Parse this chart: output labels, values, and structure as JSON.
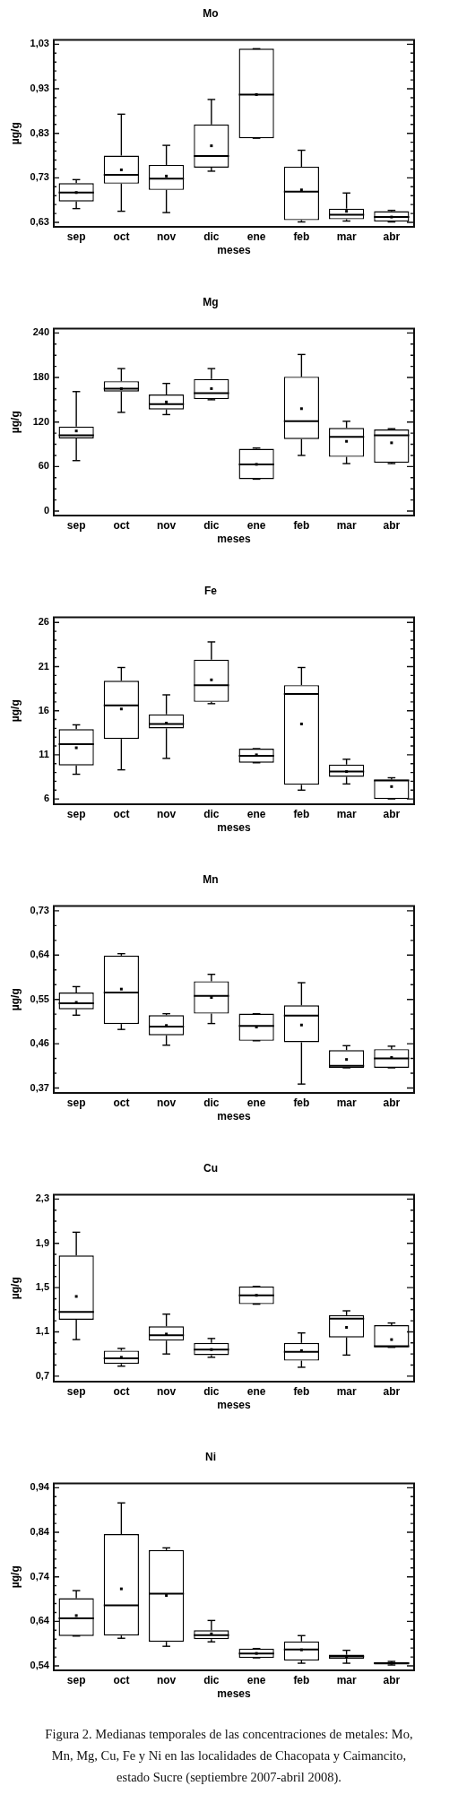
{
  "chart_data": [
    {
      "type": "box",
      "title": "Mo",
      "xlabel": "meses",
      "ylabel": "µg/g",
      "color": "#000000",
      "categories": [
        "sep",
        "oct",
        "nov",
        "dic",
        "ene",
        "feb",
        "mar",
        "abr"
      ],
      "boxes": [
        {
          "low": 0.661,
          "q1": 0.677,
          "median": 0.697,
          "q3": 0.718,
          "high": 0.726,
          "mean": 0.697
        },
        {
          "low": 0.655,
          "q1": 0.717,
          "median": 0.737,
          "q3": 0.78,
          "high": 0.873,
          "mean": 0.748
        },
        {
          "low": 0.652,
          "q1": 0.703,
          "median": 0.728,
          "q3": 0.759,
          "high": 0.803,
          "mean": 0.734
        },
        {
          "low": 0.745,
          "q1": 0.753,
          "median": 0.779,
          "q3": 0.85,
          "high": 0.906,
          "mean": 0.802
        },
        {
          "low": 0.819,
          "q1": 0.819,
          "median": 0.917,
          "q3": 1.02,
          "high": 1.02,
          "mean": 0.917
        },
        {
          "low": 0.631,
          "q1": 0.635,
          "median": 0.699,
          "q3": 0.755,
          "high": 0.792,
          "mean": 0.703
        },
        {
          "low": 0.633,
          "q1": 0.637,
          "median": 0.647,
          "q3": 0.661,
          "high": 0.696,
          "mean": 0.655
        },
        {
          "low": 0.631,
          "q1": 0.632,
          "median": 0.642,
          "q3": 0.655,
          "high": 0.657,
          "mean": 0.642
        }
      ],
      "ylim": [
        0.62,
        1.04
      ],
      "yticks": [
        {
          "value": 0.63,
          "label": "0,63"
        },
        {
          "value": 0.65,
          "label": null
        },
        {
          "value": 0.67,
          "label": null
        },
        {
          "value": 0.69,
          "label": null
        },
        {
          "value": 0.71,
          "label": null
        },
        {
          "value": 0.73,
          "label": "0,73"
        },
        {
          "value": 0.75,
          "label": null
        },
        {
          "value": 0.77,
          "label": null
        },
        {
          "value": 0.79,
          "label": null
        },
        {
          "value": 0.81,
          "label": null
        },
        {
          "value": 0.83,
          "label": "0,83"
        },
        {
          "value": 0.85,
          "label": null
        },
        {
          "value": 0.87,
          "label": null
        },
        {
          "value": 0.89,
          "label": null
        },
        {
          "value": 0.91,
          "label": null
        },
        {
          "value": 0.93,
          "label": "0,93"
        },
        {
          "value": 0.95,
          "label": null
        },
        {
          "value": 0.97,
          "label": null
        },
        {
          "value": 0.99,
          "label": null
        },
        {
          "value": 1.01,
          "label": null
        },
        {
          "value": 1.03,
          "label": "1,03"
        }
      ]
    },
    {
      "type": "box",
      "title": "Mg",
      "xlabel": "meses",
      "ylabel": "µg/g",
      "color": "#000000",
      "categories": [
        "sep",
        "oct",
        "nov",
        "dic",
        "ene",
        "feb",
        "mar",
        "abr"
      ],
      "boxes": [
        {
          "low": 68,
          "q1": 98,
          "median": 102,
          "q3": 114,
          "high": 161,
          "mean": 108
        },
        {
          "low": 133,
          "q1": 161,
          "median": 165,
          "q3": 175,
          "high": 192,
          "mean": 165
        },
        {
          "low": 130,
          "q1": 137,
          "median": 144,
          "q3": 157,
          "high": 172,
          "mean": 147
        },
        {
          "low": 150,
          "q1": 151,
          "median": 159,
          "q3": 178,
          "high": 192,
          "mean": 165
        },
        {
          "low": 43,
          "q1": 43,
          "median": 63,
          "q3": 84,
          "high": 85,
          "mean": 63
        },
        {
          "low": 75,
          "q1": 97,
          "median": 121,
          "q3": 181,
          "high": 211,
          "mean": 138
        },
        {
          "low": 64,
          "q1": 73,
          "median": 100,
          "q3": 112,
          "high": 121,
          "mean": 94
        },
        {
          "low": 64,
          "q1": 65,
          "median": 102,
          "q3": 110,
          "high": 111,
          "mean": 92
        }
      ],
      "ylim": [
        -6,
        246
      ],
      "yticks": [
        0,
        {
          "value": 15,
          "label": null
        },
        {
          "value": 30,
          "label": null
        },
        {
          "value": 45,
          "label": null
        },
        60,
        {
          "value": 75,
          "label": null
        },
        {
          "value": 90,
          "label": null
        },
        {
          "value": 105,
          "label": null
        },
        120,
        {
          "value": 135,
          "label": null
        },
        {
          "value": 150,
          "label": null
        },
        {
          "value": 165,
          "label": null
        },
        180,
        {
          "value": 195,
          "label": null
        },
        {
          "value": 210,
          "label": null
        },
        {
          "value": 225,
          "label": null
        },
        240
      ]
    },
    {
      "type": "box",
      "title": "Fe",
      "xlabel": "meses",
      "ylabel": "µg/g",
      "color": "#000000",
      "categories": [
        "sep",
        "oct",
        "nov",
        "dic",
        "ene",
        "feb",
        "mar",
        "abr"
      ],
      "boxes": [
        {
          "low": 8.8,
          "q1": 9.8,
          "median": 12.2,
          "q3": 13.9,
          "high": 14.4,
          "mean": 11.8
        },
        {
          "low": 9.3,
          "q1": 12.8,
          "median": 16.6,
          "q3": 19.4,
          "high": 20.9,
          "mean": 16.2
        },
        {
          "low": 10.6,
          "q1": 14.0,
          "median": 14.5,
          "q3": 15.6,
          "high": 17.8,
          "mean": 14.6
        },
        {
          "low": 16.8,
          "q1": 17.0,
          "median": 18.9,
          "q3": 21.8,
          "high": 23.8,
          "mean": 19.5
        },
        {
          "low": 10.1,
          "q1": 10.1,
          "median": 10.9,
          "q3": 11.7,
          "high": 11.7,
          "mean": 11.0
        },
        {
          "low": 7.0,
          "q1": 7.6,
          "median": 17.9,
          "q3": 18.9,
          "high": 20.9,
          "mean": 14.5
        },
        {
          "low": 7.7,
          "q1": 8.5,
          "median": 9.1,
          "q3": 9.9,
          "high": 10.5,
          "mean": 9.1
        },
        {
          "low": 6.0,
          "q1": 6.0,
          "median": 8.1,
          "q3": 8.2,
          "high": 8.4,
          "mean": 7.4
        }
      ],
      "ylim": [
        5.4,
        26.6
      ],
      "yticks": [
        6,
        {
          "value": 7,
          "label": null
        },
        {
          "value": 8,
          "label": null
        },
        {
          "value": 9,
          "label": null
        },
        {
          "value": 10,
          "label": null
        },
        11,
        {
          "value": 12,
          "label": null
        },
        {
          "value": 13,
          "label": null
        },
        {
          "value": 14,
          "label": null
        },
        {
          "value": 15,
          "label": null
        },
        16,
        {
          "value": 17,
          "label": null
        },
        {
          "value": 18,
          "label": null
        },
        {
          "value": 19,
          "label": null
        },
        {
          "value": 20,
          "label": null
        },
        21,
        {
          "value": 22,
          "label": null
        },
        {
          "value": 23,
          "label": null
        },
        {
          "value": 24,
          "label": null
        },
        {
          "value": 25,
          "label": null
        },
        26
      ]
    },
    {
      "type": "box",
      "title": "Mn",
      "xlabel": "meses",
      "ylabel": "µg/g",
      "color": "#000000",
      "categories": [
        "sep",
        "oct",
        "nov",
        "dic",
        "ene",
        "feb",
        "mar",
        "abr"
      ],
      "boxes": [
        {
          "low": 0.518,
          "q1": 0.53,
          "median": 0.542,
          "q3": 0.564,
          "high": 0.576,
          "mean": 0.544
        },
        {
          "low": 0.489,
          "q1": 0.5,
          "median": 0.564,
          "q3": 0.639,
          "high": 0.643,
          "mean": 0.571
        },
        {
          "low": 0.457,
          "q1": 0.477,
          "median": 0.495,
          "q3": 0.518,
          "high": 0.521,
          "mean": 0.497
        },
        {
          "low": 0.501,
          "q1": 0.521,
          "median": 0.557,
          "q3": 0.587,
          "high": 0.601,
          "mean": 0.554
        },
        {
          "low": 0.466,
          "q1": 0.466,
          "median": 0.496,
          "q3": 0.521,
          "high": 0.521,
          "mean": 0.494
        },
        {
          "low": 0.378,
          "q1": 0.463,
          "median": 0.517,
          "q3": 0.538,
          "high": 0.584,
          "mean": 0.498
        },
        {
          "low": 0.411,
          "q1": 0.411,
          "median": 0.415,
          "q3": 0.447,
          "high": 0.456,
          "mean": 0.428
        },
        {
          "low": 0.411,
          "q1": 0.411,
          "median": 0.43,
          "q3": 0.449,
          "high": 0.455,
          "mean": 0.432
        }
      ],
      "ylim": [
        0.36,
        0.74
      ],
      "yticks": [
        {
          "value": 0.37,
          "label": "0,37"
        },
        {
          "value": 0.4,
          "label": null
        },
        {
          "value": 0.43,
          "label": null
        },
        {
          "value": 0.46,
          "label": "0,46"
        },
        {
          "value": 0.49,
          "label": null
        },
        {
          "value": 0.52,
          "label": null
        },
        {
          "value": 0.55,
          "label": "0,55"
        },
        {
          "value": 0.58,
          "label": null
        },
        {
          "value": 0.61,
          "label": null
        },
        {
          "value": 0.64,
          "label": "0,64"
        },
        {
          "value": 0.67,
          "label": null
        },
        {
          "value": 0.7,
          "label": null
        },
        {
          "value": 0.73,
          "label": "0,73"
        }
      ]
    },
    {
      "type": "box",
      "title": "Cu",
      "xlabel": "meses",
      "ylabel": "µg/g",
      "color": "#000000",
      "categories": [
        "sep",
        "oct",
        "nov",
        "dic",
        "ene",
        "feb",
        "mar",
        "abr"
      ],
      "boxes": [
        {
          "low": 1.03,
          "q1": 1.21,
          "median": 1.28,
          "q3": 1.79,
          "high": 2.0,
          "mean": 1.42
        },
        {
          "low": 0.79,
          "q1": 0.81,
          "median": 0.86,
          "q3": 0.93,
          "high": 0.95,
          "mean": 0.87
        },
        {
          "low": 0.9,
          "q1": 1.02,
          "median": 1.07,
          "q3": 1.15,
          "high": 1.26,
          "mean": 1.08
        },
        {
          "low": 0.87,
          "q1": 0.89,
          "median": 0.94,
          "q3": 1.0,
          "high": 1.04,
          "mean": 0.94
        },
        {
          "low": 1.35,
          "q1": 1.35,
          "median": 1.43,
          "q3": 1.51,
          "high": 1.51,
          "mean": 1.43
        },
        {
          "low": 0.78,
          "q1": 0.84,
          "median": 0.92,
          "q3": 1.0,
          "high": 1.09,
          "mean": 0.93
        },
        {
          "low": 0.89,
          "q1": 1.05,
          "median": 1.22,
          "q3": 1.25,
          "high": 1.29,
          "mean": 1.14
        },
        {
          "low": 0.96,
          "q1": 0.96,
          "median": 0.97,
          "q3": 1.16,
          "high": 1.18,
          "mean": 1.03
        }
      ],
      "ylim": [
        0.65,
        2.34
      ],
      "yticks": [
        {
          "value": 0.7,
          "label": "0,7"
        },
        {
          "value": 0.8,
          "label": null
        },
        {
          "value": 0.9,
          "label": null
        },
        {
          "value": 1.0,
          "label": null
        },
        {
          "value": 1.1,
          "label": "1,1"
        },
        {
          "value": 1.2,
          "label": null
        },
        {
          "value": 1.3,
          "label": null
        },
        {
          "value": 1.4,
          "label": null
        },
        {
          "value": 1.5,
          "label": "1,5"
        },
        {
          "value": 1.6,
          "label": null
        },
        {
          "value": 1.7,
          "label": null
        },
        {
          "value": 1.8,
          "label": null
        },
        {
          "value": 1.9,
          "label": "1,9"
        },
        {
          "value": 2.0,
          "label": null
        },
        {
          "value": 2.1,
          "label": null
        },
        {
          "value": 2.2,
          "label": null
        },
        {
          "value": 2.3,
          "label": "2,3"
        }
      ]
    },
    {
      "type": "box",
      "title": "Ni",
      "xlabel": "meses",
      "ylabel": "µg/g",
      "color": "#000000",
      "categories": [
        "sep",
        "oct",
        "nov",
        "dic",
        "ene",
        "feb",
        "mar",
        "abr"
      ],
      "boxes": [
        {
          "low": 0.607,
          "q1": 0.607,
          "median": 0.647,
          "q3": 0.692,
          "high": 0.709,
          "mean": 0.653
        },
        {
          "low": 0.602,
          "q1": 0.608,
          "median": 0.676,
          "q3": 0.836,
          "high": 0.906,
          "mean": 0.713
        },
        {
          "low": 0.584,
          "q1": 0.594,
          "median": 0.702,
          "q3": 0.8,
          "high": 0.805,
          "mean": 0.698
        },
        {
          "low": 0.594,
          "q1": 0.6,
          "median": 0.609,
          "q3": 0.62,
          "high": 0.642,
          "mean": 0.612
        },
        {
          "low": 0.558,
          "q1": 0.558,
          "median": 0.568,
          "q3": 0.579,
          "high": 0.579,
          "mean": 0.568
        },
        {
          "low": 0.546,
          "q1": 0.552,
          "median": 0.577,
          "q3": 0.595,
          "high": 0.608,
          "mean": 0.576
        },
        {
          "low": 0.546,
          "q1": 0.556,
          "median": 0.561,
          "q3": 0.565,
          "high": 0.575,
          "mean": 0.561
        },
        {
          "low": 0.542,
          "q1": 0.543,
          "median": 0.546,
          "q3": 0.548,
          "high": 0.55,
          "mean": 0.546
        }
      ],
      "ylim": [
        0.53,
        0.95
      ],
      "yticks": [
        {
          "value": 0.54,
          "label": "0,54"
        },
        {
          "value": 0.56,
          "label": null
        },
        {
          "value": 0.58,
          "label": null
        },
        {
          "value": 0.6,
          "label": null
        },
        {
          "value": 0.62,
          "label": null
        },
        {
          "value": 0.64,
          "label": "0,64"
        },
        {
          "value": 0.66,
          "label": null
        },
        {
          "value": 0.68,
          "label": null
        },
        {
          "value": 0.7,
          "label": null
        },
        {
          "value": 0.72,
          "label": null
        },
        {
          "value": 0.74,
          "label": "0,74"
        },
        {
          "value": 0.76,
          "label": null
        },
        {
          "value": 0.78,
          "label": null
        },
        {
          "value": 0.8,
          "label": null
        },
        {
          "value": 0.82,
          "label": null
        },
        {
          "value": 0.84,
          "label": "0,84"
        },
        {
          "value": 0.86,
          "label": null
        },
        {
          "value": 0.88,
          "label": null
        },
        {
          "value": 0.9,
          "label": null
        },
        {
          "value": 0.92,
          "label": null
        },
        {
          "value": 0.94,
          "label": "0,94"
        }
      ],
      "annotations": [
        "Figura 2. Medianas temporales de las concentraciones de metales: Mo, Mn, Mg, Cu, Fe y Ni en las localidades de Chacopata y Caimancito, estado Sucre (septiembre 2007-abril 2008)."
      ]
    }
  ]
}
